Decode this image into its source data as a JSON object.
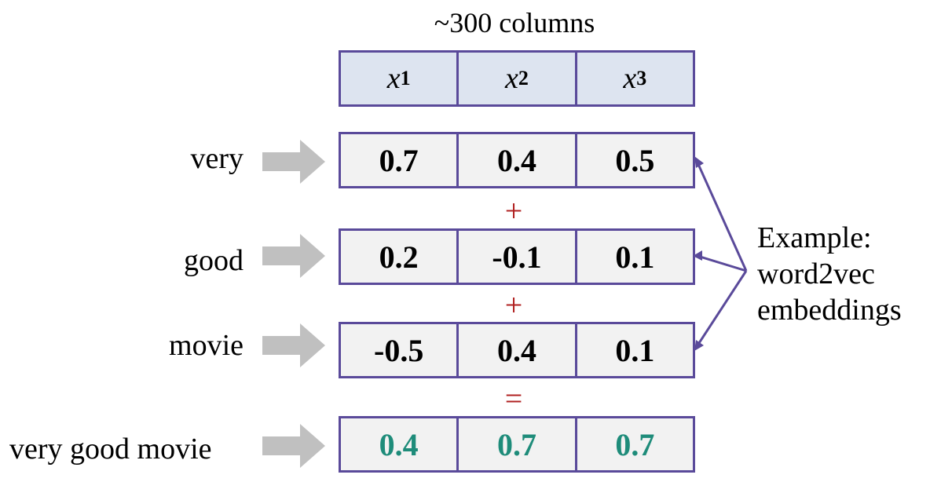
{
  "title": "~300 columns",
  "header": {
    "cells": [
      {
        "var": "x",
        "sub": "1"
      },
      {
        "var": "x",
        "sub": "2"
      },
      {
        "var": "x",
        "sub": "3"
      }
    ]
  },
  "rows": [
    {
      "word": "very",
      "values": [
        "0.7",
        "0.4",
        "0.5"
      ]
    },
    {
      "word": "good",
      "values": [
        "0.2",
        "-0.1",
        "0.1"
      ]
    },
    {
      "word": "movie",
      "values": [
        "-0.5",
        "0.4",
        "0.1"
      ]
    }
  ],
  "operators": [
    "+",
    "+",
    "="
  ],
  "result": {
    "word": "very good movie",
    "values": [
      "0.4",
      "0.7",
      "0.7"
    ]
  },
  "note": {
    "line1": "Example:",
    "line2": "word2vec",
    "line3": "embeddings"
  },
  "colors": {
    "border": "#5a4a9a",
    "header_fill": "#dde4f0",
    "cell_fill": "#f2f2f2",
    "operator": "#b02020",
    "result_text": "#1e8c7a",
    "arrow": "#c0c0c0"
  }
}
